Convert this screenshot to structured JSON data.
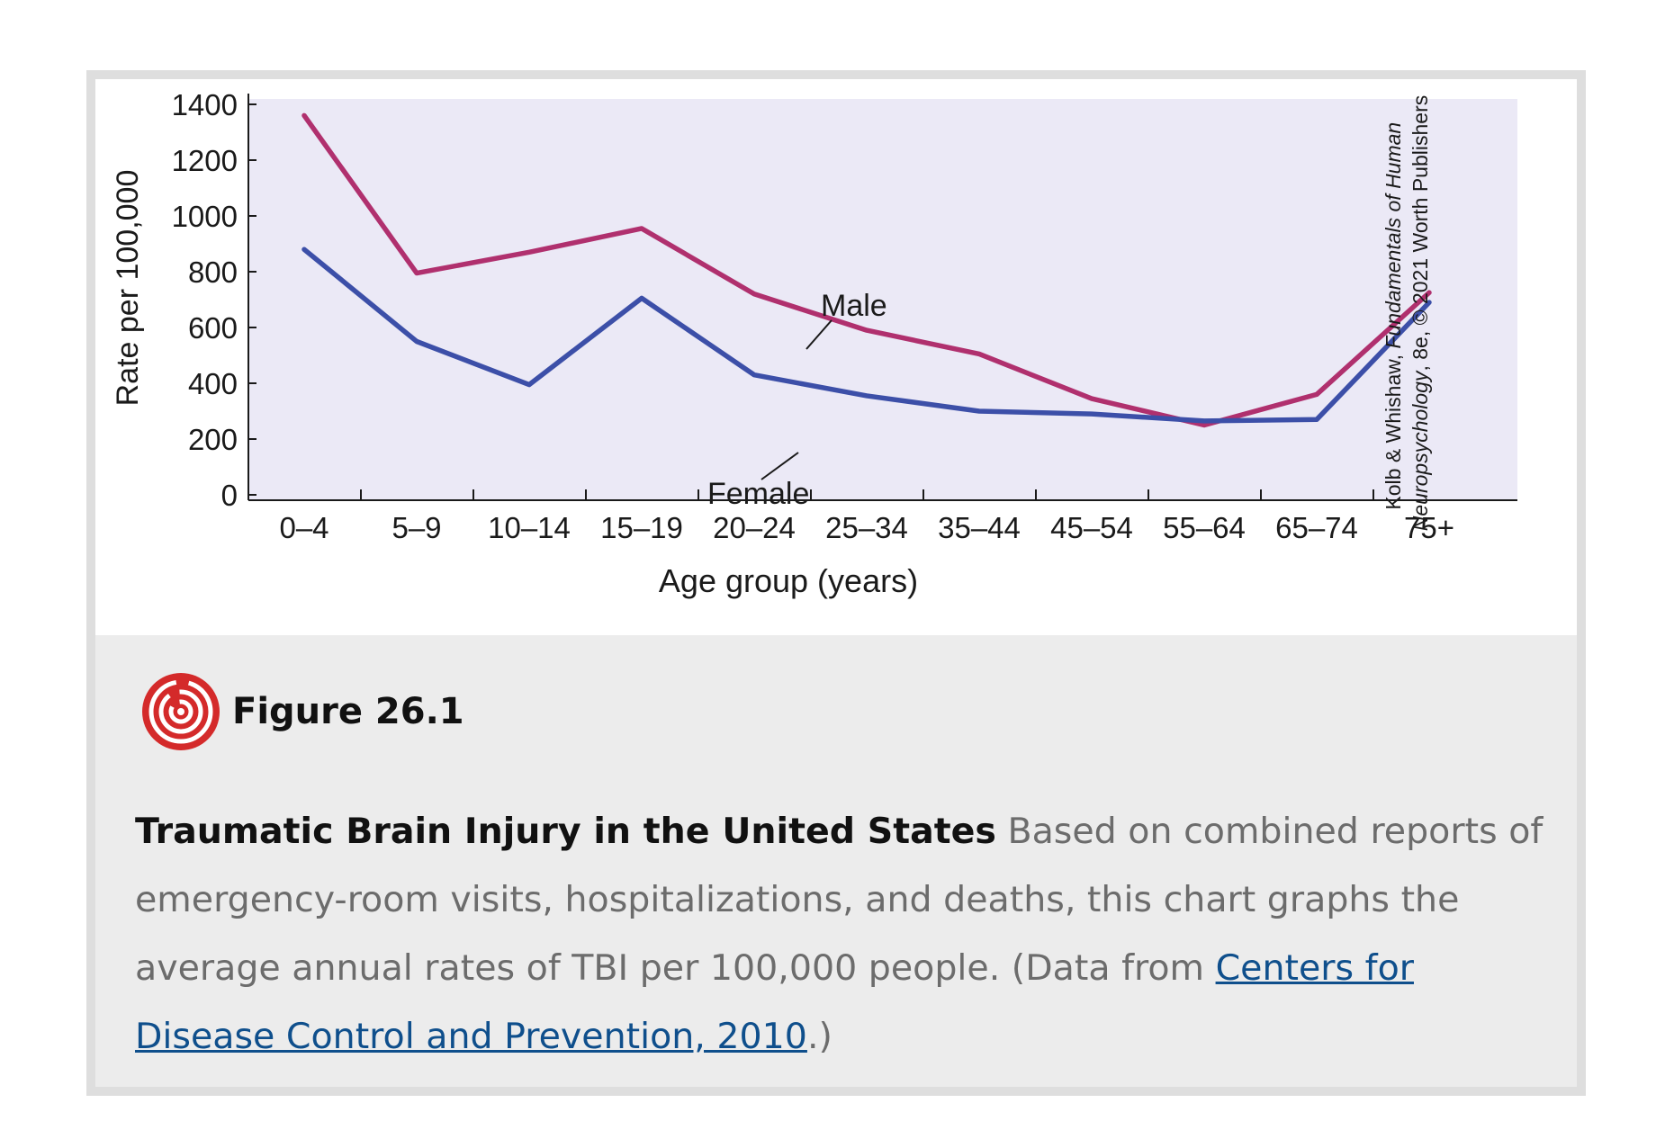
{
  "chart_data": {
    "type": "line",
    "categories": [
      "0–4",
      "5–9",
      "10–14",
      "15–19",
      "20–24",
      "25–34",
      "35–44",
      "45–54",
      "55–64",
      "65–74",
      "75+"
    ],
    "series": [
      {
        "name": "Male",
        "color": "#b0306e",
        "values": [
          1360,
          795,
          870,
          955,
          720,
          590,
          505,
          345,
          250,
          360,
          725
        ]
      },
      {
        "name": "Female",
        "color": "#3c4fa8",
        "values": [
          880,
          550,
          395,
          705,
          430,
          355,
          300,
          290,
          265,
          270,
          690
        ]
      }
    ],
    "xlabel": "Age group (years)",
    "ylabel": "Rate per 100,000",
    "ylim": [
      0,
      1400
    ],
    "yticks": [
      0,
      200,
      400,
      600,
      800,
      1000,
      1200,
      1400
    ],
    "plot_background": "#ebe9f6",
    "annotations": [
      "Male",
      "Female"
    ],
    "credit_line1_prefix": "Kolb & Whishaw, ",
    "credit_line1_italic": "Fundamentals of Human",
    "credit_line2_italic": "Neuropsychology",
    "credit_line2_rest": ", 8e, © 2021 Worth Publishers"
  },
  "figure": {
    "label": "Figure 26.1",
    "icon": "target-maze-icon",
    "icon_color": "#d42a2a"
  },
  "caption": {
    "title": "Traumatic Brain Injury in the United States",
    "text": " Based on combined reports of emergency-room visits, hospitalizations, and deaths, this chart graphs the average annual rates of TBI per 100,000 people. (Data from ",
    "link_text": "Centers for Disease Control and Prevention, 2010",
    "text_after": ".)"
  }
}
